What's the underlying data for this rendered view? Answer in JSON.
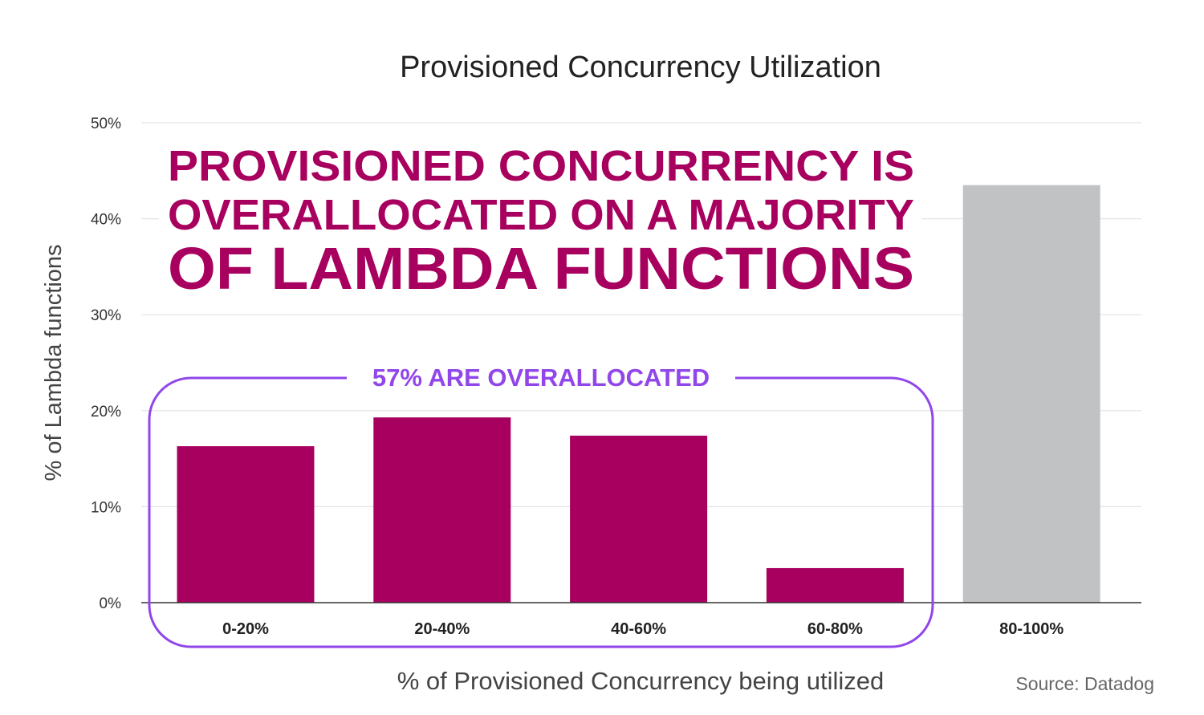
{
  "chart_data": {
    "type": "bar",
    "title": "Provisioned Concurrency Utilization",
    "xlabel": "% of Provisioned Concurrency being utilized",
    "ylabel": "% of Lambda functions",
    "categories": [
      "0-20%",
      "20-40%",
      "40-60%",
      "60-80%",
      "80-100%"
    ],
    "values": [
      16.3,
      19.3,
      17.4,
      3.6,
      43.5
    ],
    "bar_colors": [
      "#a8005e",
      "#a8005e",
      "#a8005e",
      "#a8005e",
      "#c1c2c4"
    ],
    "ylim": [
      0,
      50
    ],
    "yticks": [
      {
        "value": 0,
        "label": "0%"
      },
      {
        "value": 10,
        "label": "10%"
      },
      {
        "value": 20,
        "label": "20%"
      },
      {
        "value": 30,
        "label": "30%"
      },
      {
        "value": 40,
        "label": "40%"
      },
      {
        "value": 50,
        "label": "50%"
      }
    ],
    "grid": true,
    "headline": [
      "PROVISIONED CONCURRENCY IS",
      "OVERALLOCATED ON A MAJORITY",
      "OF LAMBDA FUNCTIONS"
    ],
    "headline_color": "#a8005e",
    "bracket": {
      "label": "57% ARE OVERALLOCATED",
      "color": "#9146ea",
      "covers_categories": [
        "0-20%",
        "20-40%",
        "40-60%",
        "60-80%"
      ]
    },
    "source": "Source: Datadog"
  }
}
